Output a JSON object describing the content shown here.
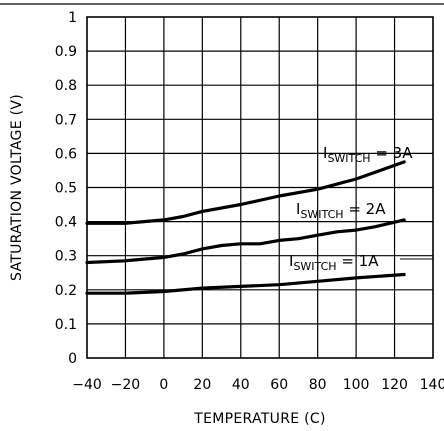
{
  "chart_data": {
    "type": "line",
    "xlabel": "TEMPERATURE (C)",
    "ylabel": "SATURATION VOLTAGE (V)",
    "xlim": [
      -40,
      140
    ],
    "ylim": [
      0,
      1
    ],
    "xticks": [
      "-40",
      "-20",
      "0",
      "20",
      "40",
      "60",
      "80",
      "100",
      "120",
      "140"
    ],
    "yticks": [
      "0",
      "0.1",
      "0.2",
      "0.3",
      "0.4",
      "0.5",
      "0.6",
      "0.7",
      "0.8",
      "0.9",
      "1"
    ],
    "grid": true,
    "series": [
      {
        "name": "I_SWITCH = 3A",
        "label_main": "I",
        "label_sub": "SWITCH",
        "label_value": " = 3A",
        "x": [
          -40,
          -20,
          0,
          10,
          20,
          40,
          60,
          80,
          100,
          125
        ],
        "y": [
          0.395,
          0.395,
          0.405,
          0.415,
          0.43,
          0.45,
          0.475,
          0.495,
          0.525,
          0.575
        ]
      },
      {
        "name": "I_SWITCH = 2A",
        "label_main": "I",
        "label_sub": "SWITCH",
        "label_value": " = 2A",
        "x": [
          -40,
          -20,
          0,
          10,
          20,
          30,
          40,
          50,
          60,
          70,
          80,
          90,
          100,
          110,
          125
        ],
        "y": [
          0.28,
          0.285,
          0.295,
          0.305,
          0.32,
          0.33,
          0.335,
          0.335,
          0.345,
          0.35,
          0.36,
          0.37,
          0.375,
          0.385,
          0.405
        ]
      },
      {
        "name": "I_SWITCH = 1A",
        "label_main": "I",
        "label_sub": "SWITCH",
        "label_value": " = 1A",
        "x": [
          -40,
          -20,
          0,
          20,
          40,
          60,
          80,
          100,
          125
        ],
        "y": [
          0.19,
          0.19,
          0.195,
          0.205,
          0.21,
          0.215,
          0.225,
          0.235,
          0.245
        ]
      }
    ]
  }
}
